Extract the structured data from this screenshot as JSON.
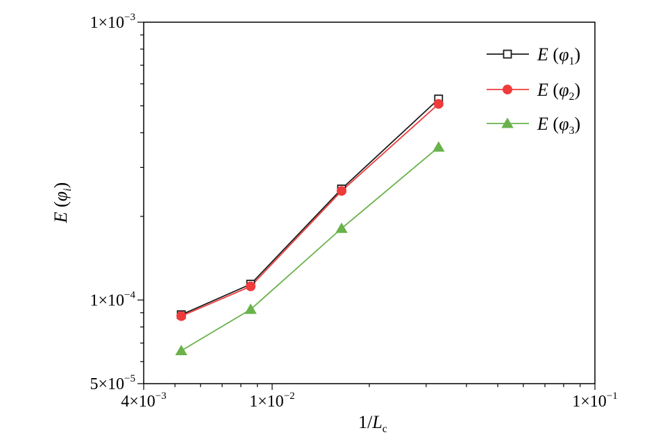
{
  "chart_data": {
    "type": "line",
    "x_scale": "log",
    "y_scale": "log",
    "xlim": [
      0.004,
      0.1
    ],
    "ylim": [
      5e-05,
      0.001
    ],
    "grid": false,
    "legend_position": "top-right",
    "xlabel": {
      "prefix": "1/",
      "main": "L",
      "sub": "c"
    },
    "ylabel": {
      "main": "E",
      "var": "φ",
      "sub": "i"
    },
    "x_ticks": [
      {
        "value": 0.004,
        "mantissa": "4×10",
        "exp": "−3"
      },
      {
        "value": 0.01,
        "mantissa": "1×10",
        "exp": "−2"
      },
      {
        "value": 0.1,
        "mantissa": "1×10",
        "exp": "−1"
      }
    ],
    "y_ticks": [
      {
        "value": 5e-05,
        "mantissa": "5×10",
        "exp": "−5"
      },
      {
        "value": 0.0001,
        "mantissa": "1×10",
        "exp": "−4"
      },
      {
        "value": 0.001,
        "mantissa": "1×10",
        "exp": "−3"
      }
    ],
    "series": [
      {
        "name": {
          "main": "E",
          "var": "φ",
          "sub": "1"
        },
        "color": "#1a1a1a",
        "marker": "square-open",
        "x": [
          0.00523,
          0.00858,
          0.01641,
          0.03279
        ],
        "y": [
          8.85e-05,
          0.000114,
          0.000251,
          0.000529
        ]
      },
      {
        "name": {
          "main": "E",
          "var": "φ",
          "sub": "2"
        },
        "color": "#ef3b3b",
        "marker": "circle-filled",
        "x": [
          0.00523,
          0.00858,
          0.01641,
          0.03279
        ],
        "y": [
          8.75e-05,
          0.000112,
          0.000247,
          0.000508
        ]
      },
      {
        "name": {
          "main": "E",
          "var": "φ",
          "sub": "3"
        },
        "color": "#6ab24b",
        "marker": "triangle-filled",
        "x": [
          0.00523,
          0.00858,
          0.01641,
          0.03279
        ],
        "y": [
          6.57e-05,
          9.25e-05,
          0.000181,
          0.000355
        ]
      }
    ]
  }
}
